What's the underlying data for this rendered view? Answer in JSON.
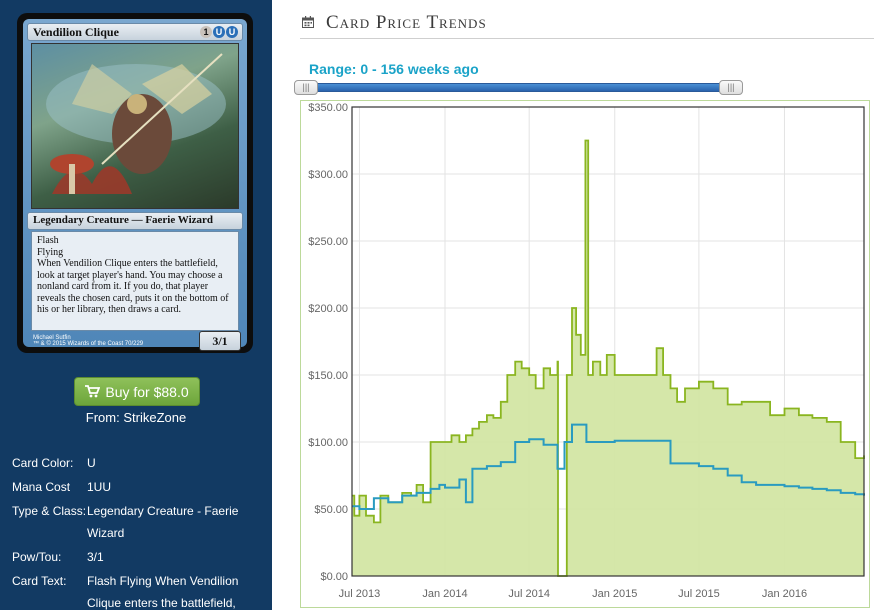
{
  "card": {
    "name": "Vendilion Clique",
    "mana_symbols": [
      "1",
      "U",
      "U"
    ],
    "type_line": "Legendary Creature — Faerie Wizard",
    "rules_text": [
      "Flash",
      "Flying",
      "When Vendilion Clique enters the battlefield, look at target player's hand. You may choose a nonland card from it. If you do, that player reveals the chosen card, puts it on the bottom of his or her library, then draws a card."
    ],
    "pow_tou": "3/1",
    "artist": "Michael Sutfin",
    "copyright": "™ & © 2015 Wizards of the Coast 70/229"
  },
  "buy": {
    "label": "Buy for $88.0",
    "from": "From: StrikeZone"
  },
  "info": [
    {
      "label": "Card Color:",
      "value": "U"
    },
    {
      "label": "Mana Cost",
      "value": "1UU"
    },
    {
      "label": "Type & Class:",
      "value": "Legendary Creature - Faerie Wizard"
    },
    {
      "label": "Pow/Tou:",
      "value": "3/1"
    },
    {
      "label": "Card Text:",
      "value": "Flash Flying When Vendilion Clique enters the battlefield,"
    }
  ],
  "header": {
    "title": "Card Price Trends",
    "icon": "calendar-icon"
  },
  "range": {
    "label": "Range: 0 - 156 weeks ago",
    "min_weeks": 0,
    "max_weeks": 156
  },
  "colors": {
    "sidebar": "#123a63",
    "green_series": "#8ab520",
    "green_fill": "#d3e6a4",
    "blue_series": "#2a9bc0",
    "range_text": "#1aa3c8",
    "buy_button": "#7db34a"
  },
  "chart_data": {
    "type": "area",
    "x_ticks": [
      "Jul 2013",
      "Jan 2014",
      "Jul 2014",
      "Jan 2015",
      "Jul 2015",
      "Jan 2016"
    ],
    "y_ticks": [
      "$0.00",
      "$50.00",
      "$100.00",
      "$150.00",
      "$200.00",
      "$250.00",
      "$300.00",
      "$350.00"
    ],
    "ylim": [
      0,
      350
    ],
    "xlim": [
      "2013-06-15",
      "2016-06-20"
    ],
    "grid": true,
    "legend": "none",
    "series": [
      {
        "type": "area",
        "x": [
          "2013-06-15",
          "2013-06-20",
          "2013-07-01",
          "2013-07-15",
          "2013-08-01",
          "2013-08-15",
          "2013-09-01",
          "2013-09-20",
          "2013-10-01",
          "2013-10-20",
          "2013-11-01",
          "2013-11-15",
          "2013-12-01",
          "2013-12-15",
          "2014-01-01",
          "2014-01-15",
          "2014-02-01",
          "2014-02-15",
          "2014-03-01",
          "2014-03-15",
          "2014-04-01",
          "2014-04-15",
          "2014-05-01",
          "2014-05-15",
          "2014-06-01",
          "2014-06-15",
          "2014-07-01",
          "2014-07-15",
          "2014-08-01",
          "2014-08-15",
          "2014-08-31",
          "2014-09-01",
          "2014-09-20",
          "2014-10-01",
          "2014-10-10",
          "2014-10-20",
          "2014-10-30",
          "2014-11-05",
          "2014-11-15",
          "2014-12-01",
          "2014-12-15",
          "2015-01-01",
          "2015-02-01",
          "2015-03-01",
          "2015-04-01",
          "2015-04-15",
          "2015-05-01",
          "2015-05-15",
          "2015-06-01",
          "2015-07-01",
          "2015-08-01",
          "2015-09-01",
          "2015-10-01",
          "2015-11-01",
          "2015-12-01",
          "2016-01-01",
          "2016-02-01",
          "2016-03-01",
          "2016-04-01",
          "2016-05-01",
          "2016-06-01",
          "2016-06-20"
        ],
        "values": [
          60,
          45,
          60,
          45,
          40,
          60,
          55,
          55,
          62,
          60,
          68,
          55,
          100,
          100,
          100,
          105,
          100,
          105,
          110,
          115,
          120,
          118,
          130,
          150,
          160,
          155,
          150,
          140,
          155,
          150,
          160,
          0,
          150,
          200,
          180,
          165,
          325,
          150,
          160,
          150,
          165,
          150,
          150,
          150,
          170,
          150,
          140,
          130,
          140,
          145,
          140,
          128,
          130,
          130,
          120,
          125,
          120,
          118,
          115,
          100,
          88,
          90
        ]
      },
      {
        "type": "line",
        "x": [
          "2013-06-15",
          "2013-07-01",
          "2013-08-01",
          "2013-09-01",
          "2013-10-01",
          "2013-11-01",
          "2013-12-01",
          "2013-12-20",
          "2014-01-01",
          "2014-02-01",
          "2014-02-15",
          "2014-03-01",
          "2014-04-01",
          "2014-05-01",
          "2014-06-01",
          "2014-07-01",
          "2014-08-01",
          "2014-08-31",
          "2014-09-15",
          "2014-10-01",
          "2014-11-01",
          "2014-12-01",
          "2015-01-01",
          "2015-02-01",
          "2015-03-01",
          "2015-04-01",
          "2015-05-01",
          "2015-06-01",
          "2015-07-01",
          "2015-08-01",
          "2015-09-01",
          "2015-10-01",
          "2015-11-01",
          "2015-12-01",
          "2016-01-01",
          "2016-02-01",
          "2016-03-01",
          "2016-04-01",
          "2016-05-01",
          "2016-06-01",
          "2016-06-20"
        ],
        "values": [
          52,
          50,
          58,
          55,
          60,
          62,
          65,
          68,
          66,
          72,
          55,
          80,
          82,
          85,
          100,
          102,
          98,
          80,
          100,
          113,
          100,
          100,
          101,
          101,
          101,
          101,
          84,
          84,
          82,
          80,
          75,
          70,
          68,
          68,
          67,
          66,
          65,
          64,
          62,
          61,
          60
        ]
      }
    ]
  }
}
